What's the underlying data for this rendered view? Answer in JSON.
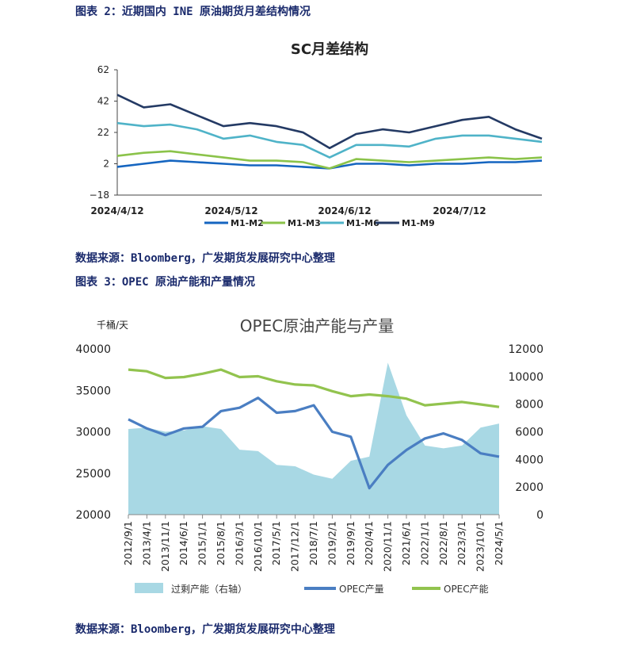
{
  "headings": {
    "fig2": "图表 2：近期国内 INE 原油期货月差结构情况",
    "source1": "数据来源：Bloomberg，广发期货发展研究中心整理",
    "fig3": "图表 3：OPEC 原油产能和产量情况",
    "source2": "数据来源：Bloomberg，广发期货发展研究中心整理"
  },
  "chart_data": [
    {
      "type": "line",
      "title": "SC月差结构",
      "x": [
        "2024/4/12",
        "2024/4/19",
        "2024/4/26",
        "2024/5/3",
        "2024/5/10",
        "2024/5/17",
        "2024/5/24",
        "2024/5/31",
        "2024/6/7",
        "2024/6/14",
        "2024/6/21",
        "2024/6/28",
        "2024/7/5",
        "2024/7/12",
        "2024/7/19",
        "2024/7/26",
        "2024/8/2"
      ],
      "xticks": [
        "2024/4/12",
        "2024/5/12",
        "2024/6/12",
        "2024/7/12"
      ],
      "ylim": [
        -18,
        62
      ],
      "yticks": [
        -18,
        2,
        22,
        42,
        62
      ],
      "legend_position": "bottom",
      "series": [
        {
          "name": "M1-M2",
          "color": "#1565c0",
          "values": [
            0,
            2,
            4,
            3,
            2,
            1,
            1,
            0,
            -1,
            2,
            2,
            1,
            2,
            2,
            3,
            3,
            4
          ]
        },
        {
          "name": "M1-M3",
          "color": "#8bc34a",
          "values": [
            7,
            9,
            10,
            8,
            6,
            4,
            4,
            3,
            -1,
            5,
            4,
            3,
            4,
            5,
            6,
            5,
            6
          ]
        },
        {
          "name": "M1-M6",
          "color": "#4fb3c8",
          "values": [
            28,
            26,
            27,
            24,
            18,
            20,
            16,
            14,
            6,
            14,
            14,
            13,
            18,
            20,
            20,
            18,
            16
          ]
        },
        {
          "name": "M1-M9",
          "color": "#243a64",
          "values": [
            46,
            38,
            40,
            33,
            26,
            28,
            26,
            22,
            12,
            21,
            24,
            22,
            26,
            30,
            32,
            24,
            18
          ]
        }
      ]
    },
    {
      "type": "line",
      "title": "OPEC原油产能与产量",
      "yunit_left": "千桶/天",
      "x": [
        "2012/9/1",
        "2013/4/1",
        "2013/11/1",
        "2014/6/1",
        "2015/1/1",
        "2015/8/1",
        "2016/3/1",
        "2016/10/1",
        "2017/5/1",
        "2017/12/1",
        "2018/7/1",
        "2019/2/1",
        "2019/9/1",
        "2020/4/1",
        "2020/11/1",
        "2021/6/1",
        "2022/1/1",
        "2022/8/1",
        "2023/3/1",
        "2023/10/1",
        "2024/5/1"
      ],
      "ylim_left": [
        20000,
        40000
      ],
      "yticks_left": [
        20000,
        25000,
        30000,
        35000,
        40000
      ],
      "ylim_right": [
        0,
        12000
      ],
      "yticks_right": [
        0,
        2000,
        4000,
        6000,
        8000,
        10000,
        12000
      ],
      "legend_position": "bottom",
      "series": [
        {
          "name": "过剩产能（右轴）",
          "type": "area",
          "axis": "right",
          "color": "#a8d8e4",
          "values": [
            6200,
            6300,
            6000,
            6100,
            6400,
            6200,
            4700,
            4600,
            3600,
            3500,
            2900,
            2600,
            3900,
            4200,
            11000,
            7200,
            5000,
            4800,
            5000,
            6300,
            6600
          ]
        },
        {
          "name": "OPEC产量",
          "type": "line",
          "axis": "left",
          "color": "#4a7ec2",
          "values": [
            31500,
            30400,
            29600,
            30400,
            30600,
            32500,
            32900,
            34100,
            32300,
            32500,
            33200,
            30000,
            29400,
            23200,
            26000,
            27800,
            29200,
            29800,
            29000,
            27400,
            27000
          ]
        },
        {
          "name": "OPEC产能",
          "type": "line",
          "axis": "left",
          "color": "#92c34e",
          "values": [
            37500,
            37300,
            36500,
            36600,
            37000,
            37500,
            36600,
            36700,
            36100,
            35700,
            35600,
            34900,
            34300,
            34500,
            34300,
            34000,
            33200,
            33400,
            33600,
            33300,
            33000
          ]
        }
      ]
    }
  ]
}
